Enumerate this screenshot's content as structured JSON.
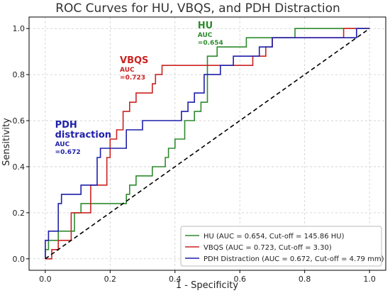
{
  "chart_data": {
    "type": "line",
    "title": "ROC Curves for HU, VBQS, and PDH Distraction",
    "xlabel": "1 - Specificity",
    "ylabel": "Sensitivity",
    "xlim": [
      -0.05,
      1.05
    ],
    "ylim": [
      -0.05,
      1.05
    ],
    "xticks": [
      "0.0",
      "0.2",
      "0.4",
      "0.6",
      "0.8",
      "1.0"
    ],
    "yticks": [
      "0.0",
      "0.2",
      "0.4",
      "0.6",
      "0.8",
      "1.0"
    ],
    "grid": true,
    "legend_position": "bottom-right",
    "colors": {
      "HU": "#2e8b2e",
      "VBQS": "#cc2222",
      "PDH": "#1f1faa",
      "diagonal": "#000000"
    },
    "series": [
      {
        "name": "HU (AUC = 0.654, Cut-off = 145.86 HU)",
        "key": "HU",
        "x": [
          0,
          0,
          0.01,
          0.01,
          0.04,
          0.04,
          0.09,
          0.09,
          0.11,
          0.11,
          0.25,
          0.25,
          0.26,
          0.26,
          0.28,
          0.28,
          0.33,
          0.33,
          0.37,
          0.37,
          0.38,
          0.38,
          0.4,
          0.4,
          0.43,
          0.43,
          0.46,
          0.46,
          0.48,
          0.48,
          0.5,
          0.5,
          0.53,
          0.53,
          0.62,
          0.62,
          0.64,
          0.64,
          0.68,
          0.68,
          0.77,
          0.77,
          0.96,
          0.96,
          1.0
        ],
        "y": [
          0,
          0.04,
          0.04,
          0.08,
          0.08,
          0.12,
          0.12,
          0.2,
          0.2,
          0.24,
          0.24,
          0.28,
          0.28,
          0.32,
          0.32,
          0.36,
          0.36,
          0.4,
          0.4,
          0.44,
          0.44,
          0.48,
          0.48,
          0.52,
          0.52,
          0.6,
          0.6,
          0.64,
          0.64,
          0.68,
          0.68,
          0.88,
          0.88,
          0.92,
          0.92,
          0.96,
          0.96,
          0.96,
          0.96,
          0.96,
          0.96,
          1.0,
          1.0,
          1.0,
          1.0
        ]
      },
      {
        "name": "VBQS (AUC = 0.723, Cut-off = 3.30)",
        "key": "VBQS",
        "x": [
          0,
          0,
          0.02,
          0.02,
          0.04,
          0.04,
          0.08,
          0.08,
          0.14,
          0.14,
          0.19,
          0.19,
          0.2,
          0.2,
          0.22,
          0.22,
          0.24,
          0.24,
          0.26,
          0.26,
          0.28,
          0.28,
          0.3,
          0.3,
          0.33,
          0.33,
          0.34,
          0.34,
          0.36,
          0.36,
          0.64,
          0.64,
          0.68,
          0.68,
          0.7,
          0.7,
          0.72,
          0.72,
          0.92,
          0.92,
          1.0
        ],
        "y": [
          0,
          0.0,
          0.0,
          0.04,
          0.04,
          0.08,
          0.08,
          0.2,
          0.2,
          0.32,
          0.32,
          0.44,
          0.44,
          0.52,
          0.52,
          0.56,
          0.56,
          0.64,
          0.64,
          0.68,
          0.68,
          0.72,
          0.72,
          0.72,
          0.72,
          0.76,
          0.76,
          0.8,
          0.8,
          0.84,
          0.84,
          0.88,
          0.88,
          0.92,
          0.92,
          0.96,
          0.96,
          0.96,
          0.96,
          1.0,
          1.0
        ]
      },
      {
        "name": "PDH Distraction (AUC = 0.672, Cut-off = 4.79 mm)",
        "key": "PDH",
        "x": [
          0,
          0,
          0.01,
          0.01,
          0.04,
          0.04,
          0.05,
          0.05,
          0.11,
          0.11,
          0.16,
          0.16,
          0.17,
          0.17,
          0.18,
          0.18,
          0.25,
          0.25,
          0.3,
          0.3,
          0.42,
          0.42,
          0.44,
          0.44,
          0.46,
          0.46,
          0.49,
          0.49,
          0.54,
          0.54,
          0.56,
          0.56,
          0.58,
          0.58,
          0.66,
          0.66,
          0.7,
          0.7,
          0.72,
          0.72,
          0.96,
          0.96,
          1.0
        ],
        "y": [
          0,
          0.08,
          0.08,
          0.12,
          0.12,
          0.24,
          0.24,
          0.28,
          0.28,
          0.32,
          0.32,
          0.44,
          0.44,
          0.48,
          0.48,
          0.48,
          0.48,
          0.56,
          0.56,
          0.6,
          0.6,
          0.64,
          0.64,
          0.68,
          0.68,
          0.72,
          0.72,
          0.8,
          0.8,
          0.84,
          0.84,
          0.84,
          0.84,
          0.88,
          0.88,
          0.92,
          0.92,
          0.96,
          0.96,
          0.96,
          0.96,
          1.0,
          1.0
        ]
      }
    ],
    "diagonal": {
      "x": [
        0,
        1
      ],
      "y": [
        0,
        1
      ]
    },
    "annotations": [
      {
        "key": "HU",
        "label": "HU",
        "auc_label": "AUC",
        "auc_value": "=0.654",
        "x": 0.47,
        "y": 1.0
      },
      {
        "key": "VBQS",
        "label": "VBQS",
        "auc_label": "AUC",
        "auc_value": "=0.723",
        "x": 0.23,
        "y": 0.85
      },
      {
        "key": "PDH",
        "label": "PDH",
        "label2": "distraction",
        "auc_label": "AUC",
        "auc_value": "=0.672",
        "x": 0.03,
        "y": 0.57
      }
    ]
  }
}
